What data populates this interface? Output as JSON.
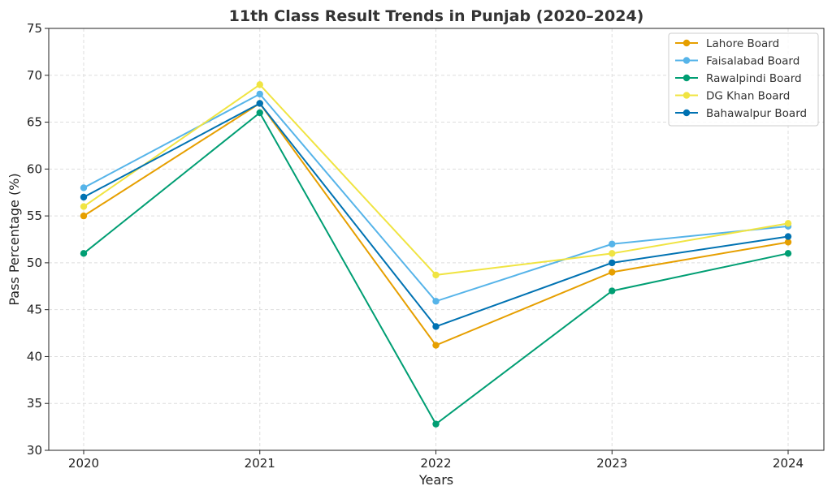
{
  "chart_data": {
    "type": "line",
    "title": "11th Class Result Trends in Punjab (2020–2024)",
    "xlabel": "Years",
    "ylabel": "Pass Percentage (%)",
    "x": [
      "2020",
      "2021",
      "2022",
      "2023",
      "2024"
    ],
    "ylim": [
      30,
      75
    ],
    "yticks": [
      30,
      35,
      40,
      45,
      50,
      55,
      60,
      65,
      70,
      75
    ],
    "grid": true,
    "legend_position": "top-right",
    "series": [
      {
        "name": "Lahore Board",
        "color": "#E69F00",
        "values": [
          55,
          67,
          41.2,
          49,
          52.2
        ]
      },
      {
        "name": "Faisalabad Board",
        "color": "#56B4E9",
        "values": [
          58,
          68,
          45.9,
          52,
          53.9
        ]
      },
      {
        "name": "Rawalpindi Board",
        "color": "#009E73",
        "values": [
          51,
          66,
          32.8,
          47,
          51
        ]
      },
      {
        "name": "DG Khan Board",
        "color": "#F0E442",
        "values": [
          56,
          69,
          48.7,
          51,
          54.2
        ]
      },
      {
        "name": "Bahawalpur Board",
        "color": "#0072B2",
        "values": [
          57,
          67,
          43.2,
          50,
          52.8
        ]
      }
    ]
  }
}
